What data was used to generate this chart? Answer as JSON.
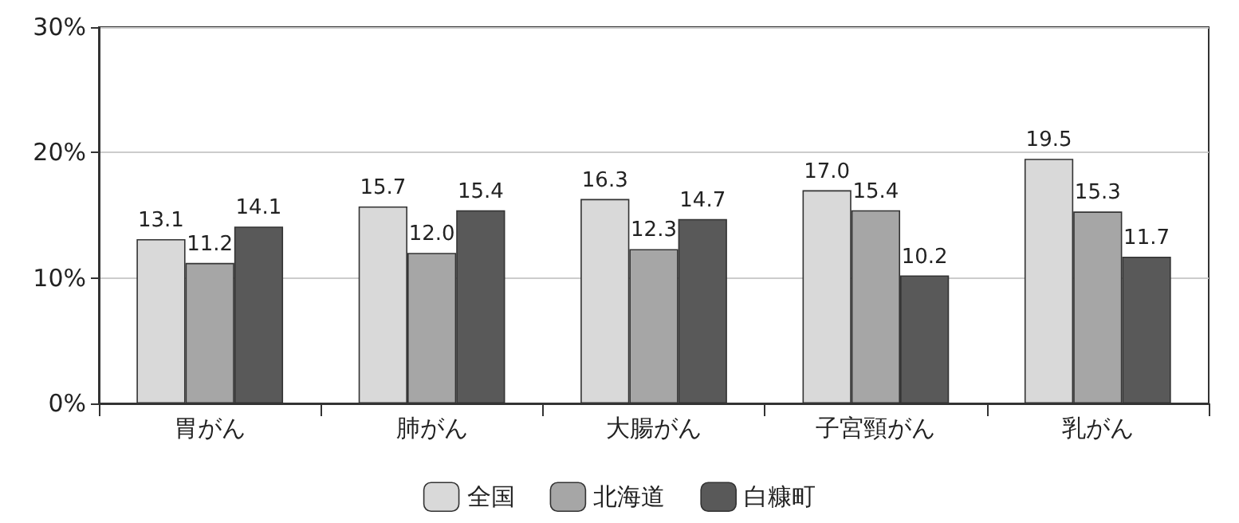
{
  "chart_data": {
    "type": "bar",
    "categories": [
      "胃がん",
      "肺がん",
      "大腸がん",
      "子宮頸がん",
      "乳がん"
    ],
    "series": [
      {
        "name": "全国",
        "color": "#d9d9d9",
        "values": [
          13.1,
          15.7,
          16.3,
          17.0,
          19.5
        ],
        "value_labels": [
          "13.1",
          "15.7",
          "16.3",
          "17.0",
          "19.5"
        ]
      },
      {
        "name": "北海道",
        "color": "#a6a6a6",
        "values": [
          11.2,
          12.0,
          12.3,
          15.4,
          15.3
        ],
        "value_labels": [
          "11.2",
          "12.0",
          "12.3",
          "15.4",
          "15.3"
        ]
      },
      {
        "name": "白糠町",
        "color": "#595959",
        "values": [
          14.1,
          15.4,
          14.7,
          10.2,
          11.7
        ],
        "value_labels": [
          "14.1",
          "15.4",
          "14.7",
          "10.2",
          "11.7"
        ]
      }
    ],
    "ylim": [
      0,
      30
    ],
    "yticks": [
      {
        "value": 0,
        "label": "0%"
      },
      {
        "value": 10,
        "label": "10%"
      },
      {
        "value": 20,
        "label": "20%"
      },
      {
        "value": 30,
        "label": "30%"
      }
    ],
    "grid": "y",
    "legend": "bottom"
  }
}
